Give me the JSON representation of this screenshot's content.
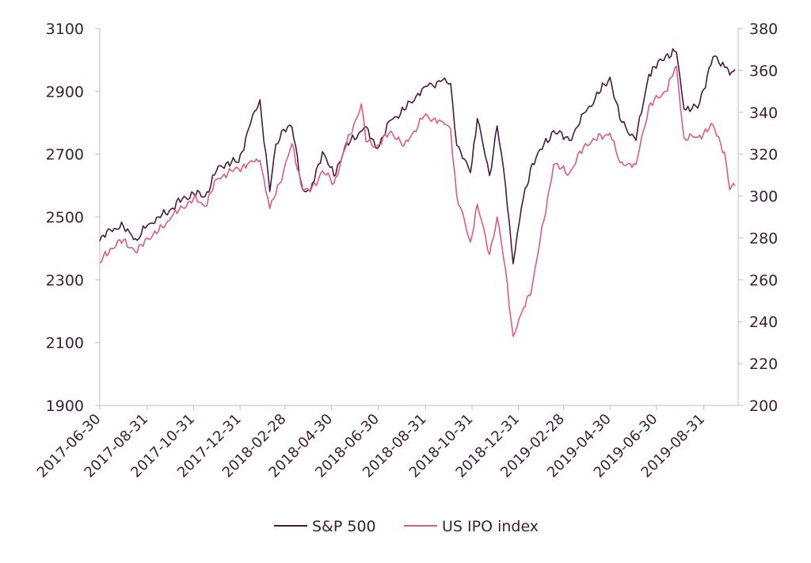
{
  "colors": {
    "sp500": "#4a1a3e",
    "ipo": "#e05a7e",
    "text": "#3b1f33"
  },
  "chart_data": {
    "type": "line",
    "title": "",
    "xlabel": "",
    "ylabel": "",
    "y2label": "",
    "grid": false,
    "legend_position": "bottom",
    "xlim": [
      "2017-06-30",
      "2019-10-15"
    ],
    "ylim": [
      1900,
      3100
    ],
    "y2lim": [
      200,
      380
    ],
    "x_ticks": [
      "2017-06-30",
      "2017-08-31",
      "2017-10-31",
      "2017-12-31",
      "2018-02-28",
      "2018-04-30",
      "2018-06-30",
      "2018-08-31",
      "2018-10-31",
      "2018-12-31",
      "2019-02-28",
      "2019-04-30",
      "2019-06-30",
      "2019-08-31"
    ],
    "y_ticks": [
      "1900",
      "2100",
      "2300",
      "2500",
      "2700",
      "2900",
      "3100"
    ],
    "y2_ticks": [
      "200",
      "220",
      "240",
      "260",
      "280",
      "300",
      "320",
      "340",
      "360",
      "380"
    ],
    "series": [
      {
        "name": "S&P 500",
        "axis": "left",
        "points": [
          [
            "2017-06-30",
            2423
          ],
          [
            "2017-07-14",
            2459
          ],
          [
            "2017-07-31",
            2470
          ],
          [
            "2017-08-11",
            2441
          ],
          [
            "2017-08-18",
            2426
          ],
          [
            "2017-08-31",
            2472
          ],
          [
            "2017-09-15",
            2500
          ],
          [
            "2017-09-29",
            2519
          ],
          [
            "2017-10-16",
            2557
          ],
          [
            "2017-10-31",
            2575
          ],
          [
            "2017-11-15",
            2565
          ],
          [
            "2017-11-30",
            2647
          ],
          [
            "2017-12-15",
            2676
          ],
          [
            "2017-12-29",
            2674
          ],
          [
            "2018-01-12",
            2786
          ],
          [
            "2018-01-26",
            2873
          ],
          [
            "2018-02-08",
            2581
          ],
          [
            "2018-02-16",
            2732
          ],
          [
            "2018-02-26",
            2779
          ],
          [
            "2018-03-09",
            2786
          ],
          [
            "2018-03-23",
            2588
          ],
          [
            "2018-04-02",
            2582
          ],
          [
            "2018-04-18",
            2708
          ],
          [
            "2018-05-03",
            2630
          ],
          [
            "2018-05-17",
            2720
          ],
          [
            "2018-06-12",
            2786
          ],
          [
            "2018-06-29",
            2718
          ],
          [
            "2018-07-17",
            2809
          ],
          [
            "2018-08-03",
            2840
          ],
          [
            "2018-08-29",
            2914
          ],
          [
            "2018-09-20",
            2931
          ],
          [
            "2018-10-03",
            2925
          ],
          [
            "2018-10-11",
            2728
          ],
          [
            "2018-10-29",
            2641
          ],
          [
            "2018-11-07",
            2813
          ],
          [
            "2018-11-23",
            2632
          ],
          [
            "2018-12-03",
            2790
          ],
          [
            "2018-12-14",
            2600
          ],
          [
            "2018-12-24",
            2351
          ],
          [
            "2019-01-04",
            2532
          ],
          [
            "2019-01-18",
            2670
          ],
          [
            "2019-02-15",
            2775
          ],
          [
            "2019-03-08",
            2743
          ],
          [
            "2019-03-29",
            2834
          ],
          [
            "2019-04-30",
            2945
          ],
          [
            "2019-05-13",
            2811
          ],
          [
            "2019-06-03",
            2744
          ],
          [
            "2019-06-20",
            2954
          ],
          [
            "2019-07-12",
            3013
          ],
          [
            "2019-07-26",
            3025
          ],
          [
            "2019-08-05",
            2844
          ],
          [
            "2019-08-23",
            2847
          ],
          [
            "2019-09-12",
            3009
          ],
          [
            "2019-09-30",
            2977
          ],
          [
            "2019-10-04",
            2952
          ],
          [
            "2019-10-11",
            2970
          ]
        ]
      },
      {
        "name": "US IPO index",
        "axis": "right",
        "points": [
          [
            "2017-06-30",
            268
          ],
          [
            "2017-07-14",
            275
          ],
          [
            "2017-07-31",
            279
          ],
          [
            "2017-08-18",
            273
          ],
          [
            "2017-08-31",
            280
          ],
          [
            "2017-09-15",
            283
          ],
          [
            "2017-10-02",
            290
          ],
          [
            "2017-10-31",
            299
          ],
          [
            "2017-11-15",
            295
          ],
          [
            "2017-11-30",
            308
          ],
          [
            "2017-12-15",
            311
          ],
          [
            "2017-12-29",
            313
          ],
          [
            "2018-01-12",
            316
          ],
          [
            "2018-01-26",
            317
          ],
          [
            "2018-02-08",
            294
          ],
          [
            "2018-02-26",
            312
          ],
          [
            "2018-03-09",
            325
          ],
          [
            "2018-03-23",
            303
          ],
          [
            "2018-04-02",
            302
          ],
          [
            "2018-04-18",
            312
          ],
          [
            "2018-05-03",
            306
          ],
          [
            "2018-05-17",
            322
          ],
          [
            "2018-06-08",
            344
          ],
          [
            "2018-06-14",
            326
          ],
          [
            "2018-06-29",
            324
          ],
          [
            "2018-07-17",
            331
          ],
          [
            "2018-08-03",
            324
          ],
          [
            "2018-08-29",
            338
          ],
          [
            "2018-09-20",
            336
          ],
          [
            "2018-10-03",
            332
          ],
          [
            "2018-10-11",
            300
          ],
          [
            "2018-10-29",
            278
          ],
          [
            "2018-11-07",
            296
          ],
          [
            "2018-11-23",
            272
          ],
          [
            "2018-12-03",
            290
          ],
          [
            "2018-12-14",
            265
          ],
          [
            "2018-12-24",
            233
          ],
          [
            "2019-01-04",
            244
          ],
          [
            "2019-01-18",
            257
          ],
          [
            "2019-02-15",
            315
          ],
          [
            "2019-03-08",
            311
          ],
          [
            "2019-03-29",
            325
          ],
          [
            "2019-04-30",
            330
          ],
          [
            "2019-05-13",
            316
          ],
          [
            "2019-06-03",
            315
          ],
          [
            "2019-06-20",
            343
          ],
          [
            "2019-07-12",
            350
          ],
          [
            "2019-07-26",
            362
          ],
          [
            "2019-08-05",
            328
          ],
          [
            "2019-08-23",
            328
          ],
          [
            "2019-09-12",
            334
          ],
          [
            "2019-09-27",
            321
          ],
          [
            "2019-10-04",
            303
          ],
          [
            "2019-10-11",
            305
          ]
        ]
      }
    ]
  }
}
